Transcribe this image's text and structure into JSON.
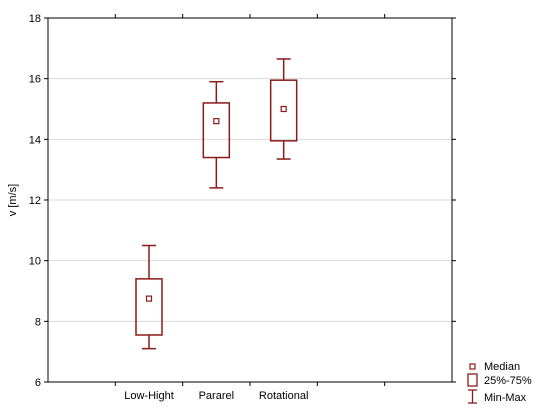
{
  "chart_data": {
    "type": "box",
    "title": "",
    "xlabel": "",
    "ylabel": "v [m/s]",
    "ylim": [
      6,
      18
    ],
    "yticks": [
      "6",
      "8",
      "10",
      "12",
      "14",
      "16",
      "18"
    ],
    "grid": true,
    "categories": [
      "Low-Hight",
      "Pararel",
      "Rotational"
    ],
    "boxes": [
      {
        "category": "Low-Hight",
        "min": 7.1,
        "q1": 7.55,
        "median": 8.75,
        "q3": 9.4,
        "max": 10.5
      },
      {
        "category": "Pararel",
        "min": 12.4,
        "q1": 13.4,
        "median": 14.6,
        "q3": 15.2,
        "max": 15.9
      },
      {
        "category": "Rotational",
        "min": 13.35,
        "q1": 13.95,
        "median": 15.0,
        "q3": 15.95,
        "max": 16.65
      }
    ],
    "legend": {
      "placement": "bottom-right",
      "entries": [
        "Median",
        "25%-75%",
        "Min-Max"
      ]
    },
    "colors": {
      "box": "#8b1a1a",
      "grid": "#d9d9d9",
      "axis": "#000000"
    }
  }
}
